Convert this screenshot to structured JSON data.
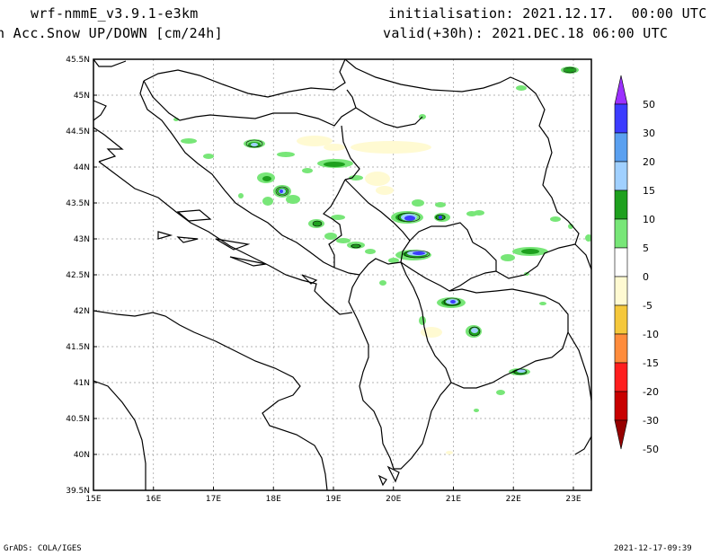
{
  "header": {
    "model": "wrf-nmmE_v3.9.1-e3km",
    "variable": "n Acc.Snow UP/DOWN [cm/24h]",
    "init": "initialisation: 2021.12.17.  00:00 UTC",
    "valid": "valid(+30h): 2021.DEC.18 06:00 UTC"
  },
  "footer": {
    "credit": "GrADS: COLA/IGES",
    "timestamp": "2021-12-17-09:39"
  },
  "map": {
    "lon_labels": [
      "15E",
      "16E",
      "17E",
      "18E",
      "19E",
      "20E",
      "21E",
      "22E",
      "23E"
    ],
    "lat_labels": [
      "45.5N",
      "45N",
      "44.5N",
      "44N",
      "43.5N",
      "43N",
      "42.5N",
      "42N",
      "41.5N",
      "41N",
      "40.5N",
      "40N",
      "39.5N"
    ],
    "lon_range": [
      15,
      23.3
    ],
    "lat_range": [
      39.5,
      45.5
    ]
  },
  "legend": {
    "labels": [
      "50",
      "30",
      "20",
      "15",
      "10",
      "5",
      "0",
      "-5",
      "-10",
      "-15",
      "-20",
      "-30",
      "-50"
    ],
    "colors": [
      "#9b30ff",
      "#3c3cff",
      "#5aa0f0",
      "#a0d0ff",
      "#1ea01e",
      "#78e678",
      "#ffffff",
      "#fffad2",
      "#f5c83c",
      "#ff8c3c",
      "#ff1e1e",
      "#c80000",
      "#960000"
    ]
  }
}
